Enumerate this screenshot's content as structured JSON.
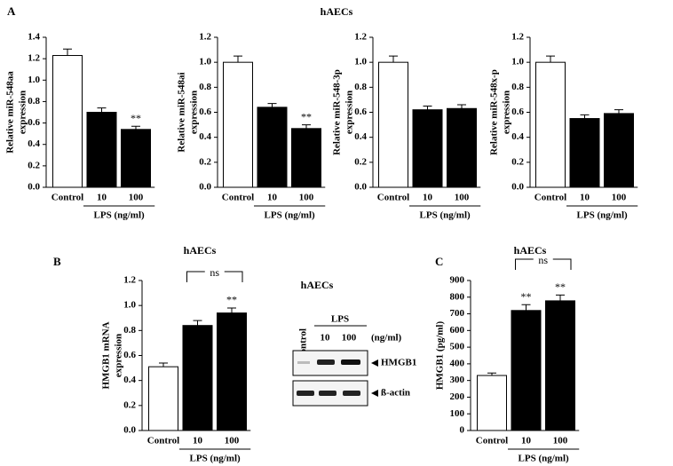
{
  "panel_a": {
    "label": "A",
    "title": "hAECs"
  },
  "chart_data": [
    {
      "type": "bar",
      "ylabel": [
        "Relative miR-548aa",
        "expression"
      ],
      "categories": [
        "Control",
        "10",
        "100"
      ],
      "group_label": "LPS (ng/ml)",
      "values": [
        1.23,
        0.7,
        0.54
      ],
      "errors": [
        0.06,
        0.04,
        0.03
      ],
      "colors": [
        "#ffffff",
        "#000000",
        "#000000"
      ],
      "annotations": [
        null,
        null,
        "**"
      ],
      "ylim": [
        0,
        1.4
      ],
      "yticks": [
        {
          "value": 0,
          "label": "0.0"
        },
        0.2,
        0.4,
        0.6,
        0.8,
        {
          "value": 1,
          "label": "1.0"
        },
        1.2,
        1.4
      ]
    },
    {
      "type": "bar",
      "ylabel": [
        "Relative miR-548ai",
        "expression"
      ],
      "categories": [
        "Control",
        "10",
        "100"
      ],
      "group_label": "LPS (ng/ml)",
      "values": [
        1.0,
        0.64,
        0.47
      ],
      "errors": [
        0.05,
        0.03,
        0.03
      ],
      "colors": [
        "#ffffff",
        "#000000",
        "#000000"
      ],
      "annotations": [
        null,
        null,
        "**"
      ],
      "ylim": [
        0,
        1.2
      ],
      "yticks": [
        {
          "value": 0,
          "label": "0.0"
        },
        0.2,
        0.4,
        0.6,
        0.8,
        {
          "value": 1,
          "label": "1.0"
        },
        1.2
      ]
    },
    {
      "type": "bar",
      "ylabel": [
        "Relative miR-548-3p",
        "expression"
      ],
      "categories": [
        "Control",
        "10",
        "100"
      ],
      "group_label": "LPS (ng/ml)",
      "values": [
        1.0,
        0.62,
        0.63
      ],
      "errors": [
        0.05,
        0.03,
        0.03
      ],
      "colors": [
        "#ffffff",
        "#000000",
        "#000000"
      ],
      "annotations": [
        null,
        null,
        null
      ],
      "ylim": [
        0,
        1.2
      ],
      "yticks": [
        {
          "value": 0,
          "label": "0.0"
        },
        0.2,
        0.4,
        0.6,
        0.8,
        {
          "value": 1,
          "label": "1.0"
        },
        1.2
      ]
    },
    {
      "type": "bar",
      "ylabel": [
        "Relative miR-548x-p",
        "expression"
      ],
      "categories": [
        "Control",
        "10",
        "100"
      ],
      "group_label": "LPS (ng/ml)",
      "values": [
        1.0,
        0.55,
        0.59
      ],
      "errors": [
        0.05,
        0.03,
        0.03
      ],
      "colors": [
        "#ffffff",
        "#000000",
        "#000000"
      ],
      "annotations": [
        null,
        null,
        null
      ],
      "ylim": [
        0,
        1.2
      ],
      "yticks": [
        {
          "value": 0,
          "label": "0.0"
        },
        0.2,
        0.4,
        0.6,
        0.8,
        {
          "value": 1,
          "label": "1.0"
        },
        1.2
      ]
    },
    {
      "type": "bar",
      "panel_label": "B",
      "title": "hAECs",
      "ylabel": [
        "HMGB1 mRNA",
        "expression"
      ],
      "categories": [
        "Control",
        "10",
        "100"
      ],
      "group_label": "LPS (ng/ml)",
      "values": [
        0.51,
        0.84,
        0.94
      ],
      "errors": [
        0.03,
        0.04,
        0.04
      ],
      "colors": [
        "#ffffff",
        "#000000",
        "#000000"
      ],
      "annotations": [
        null,
        null,
        "**"
      ],
      "bracket": "ns",
      "ylim": [
        0,
        1.2
      ],
      "yticks": [
        {
          "value": 0,
          "label": "0.0"
        },
        0.2,
        0.4,
        0.6,
        0.8,
        {
          "value": 1,
          "label": "1.0"
        },
        1.2
      ]
    },
    {
      "type": "bar",
      "panel_label": "C",
      "title": "hAECs",
      "ylabel": [
        "HMGB1 (pg/ml)"
      ],
      "categories": [
        "Control",
        "10",
        "100"
      ],
      "group_label": "LPS (ng/ml)",
      "values": [
        330,
        720,
        778
      ],
      "errors": [
        15,
        35,
        35
      ],
      "colors": [
        "#ffffff",
        "#000000",
        "#000000"
      ],
      "annotations": [
        null,
        "**",
        "**"
      ],
      "bracket": "ns",
      "ylim": [
        0,
        900
      ],
      "yticks": [
        0,
        100,
        200,
        300,
        400,
        500,
        600,
        700,
        800,
        900
      ]
    }
  ],
  "blot": {
    "title": "hAECs",
    "group_label": "LPS",
    "lanes": [
      "Control",
      "10",
      "100"
    ],
    "unit": "(ng/ml)",
    "bands": [
      "HMGB1",
      "ß-actin"
    ]
  }
}
